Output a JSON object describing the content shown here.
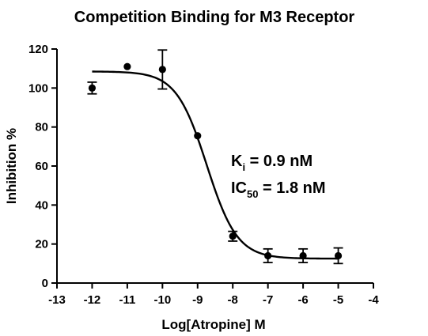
{
  "chart_data": {
    "type": "scatter",
    "title": "Competition Binding for M3 Receptor",
    "xlabel": "Log[Atropine] M",
    "ylabel": "Inhibition %",
    "xlim": [
      -13,
      -4
    ],
    "ylim": [
      0,
      120
    ],
    "x_ticks": [
      -13,
      -12,
      -11,
      -10,
      -9,
      -8,
      -7,
      -6,
      -5,
      -4
    ],
    "y_ticks": [
      0,
      20,
      40,
      60,
      80,
      100,
      120
    ],
    "grid": false,
    "series": [
      {
        "x": [
          -12,
          -11,
          -10,
          -9,
          -8,
          -7,
          -6,
          -5
        ],
        "y": [
          100,
          111,
          109.5,
          75.5,
          24,
          14,
          14,
          14
        ],
        "error": [
          3,
          0,
          10,
          0,
          2.5,
          3.5,
          3.5,
          4
        ]
      }
    ],
    "fit": {
      "model": "sigmoidal dose-response",
      "top": 108.5,
      "bottom": 12.5,
      "logIC50": -8.74,
      "hill_slope": 1
    },
    "annotations": {
      "ki_label": "K",
      "ki_sub": "i",
      "ki_value": " = 0.9 nM",
      "ic50_label": "IC",
      "ic50_sub": "50",
      "ic50_value": " = 1.8 nM"
    }
  }
}
